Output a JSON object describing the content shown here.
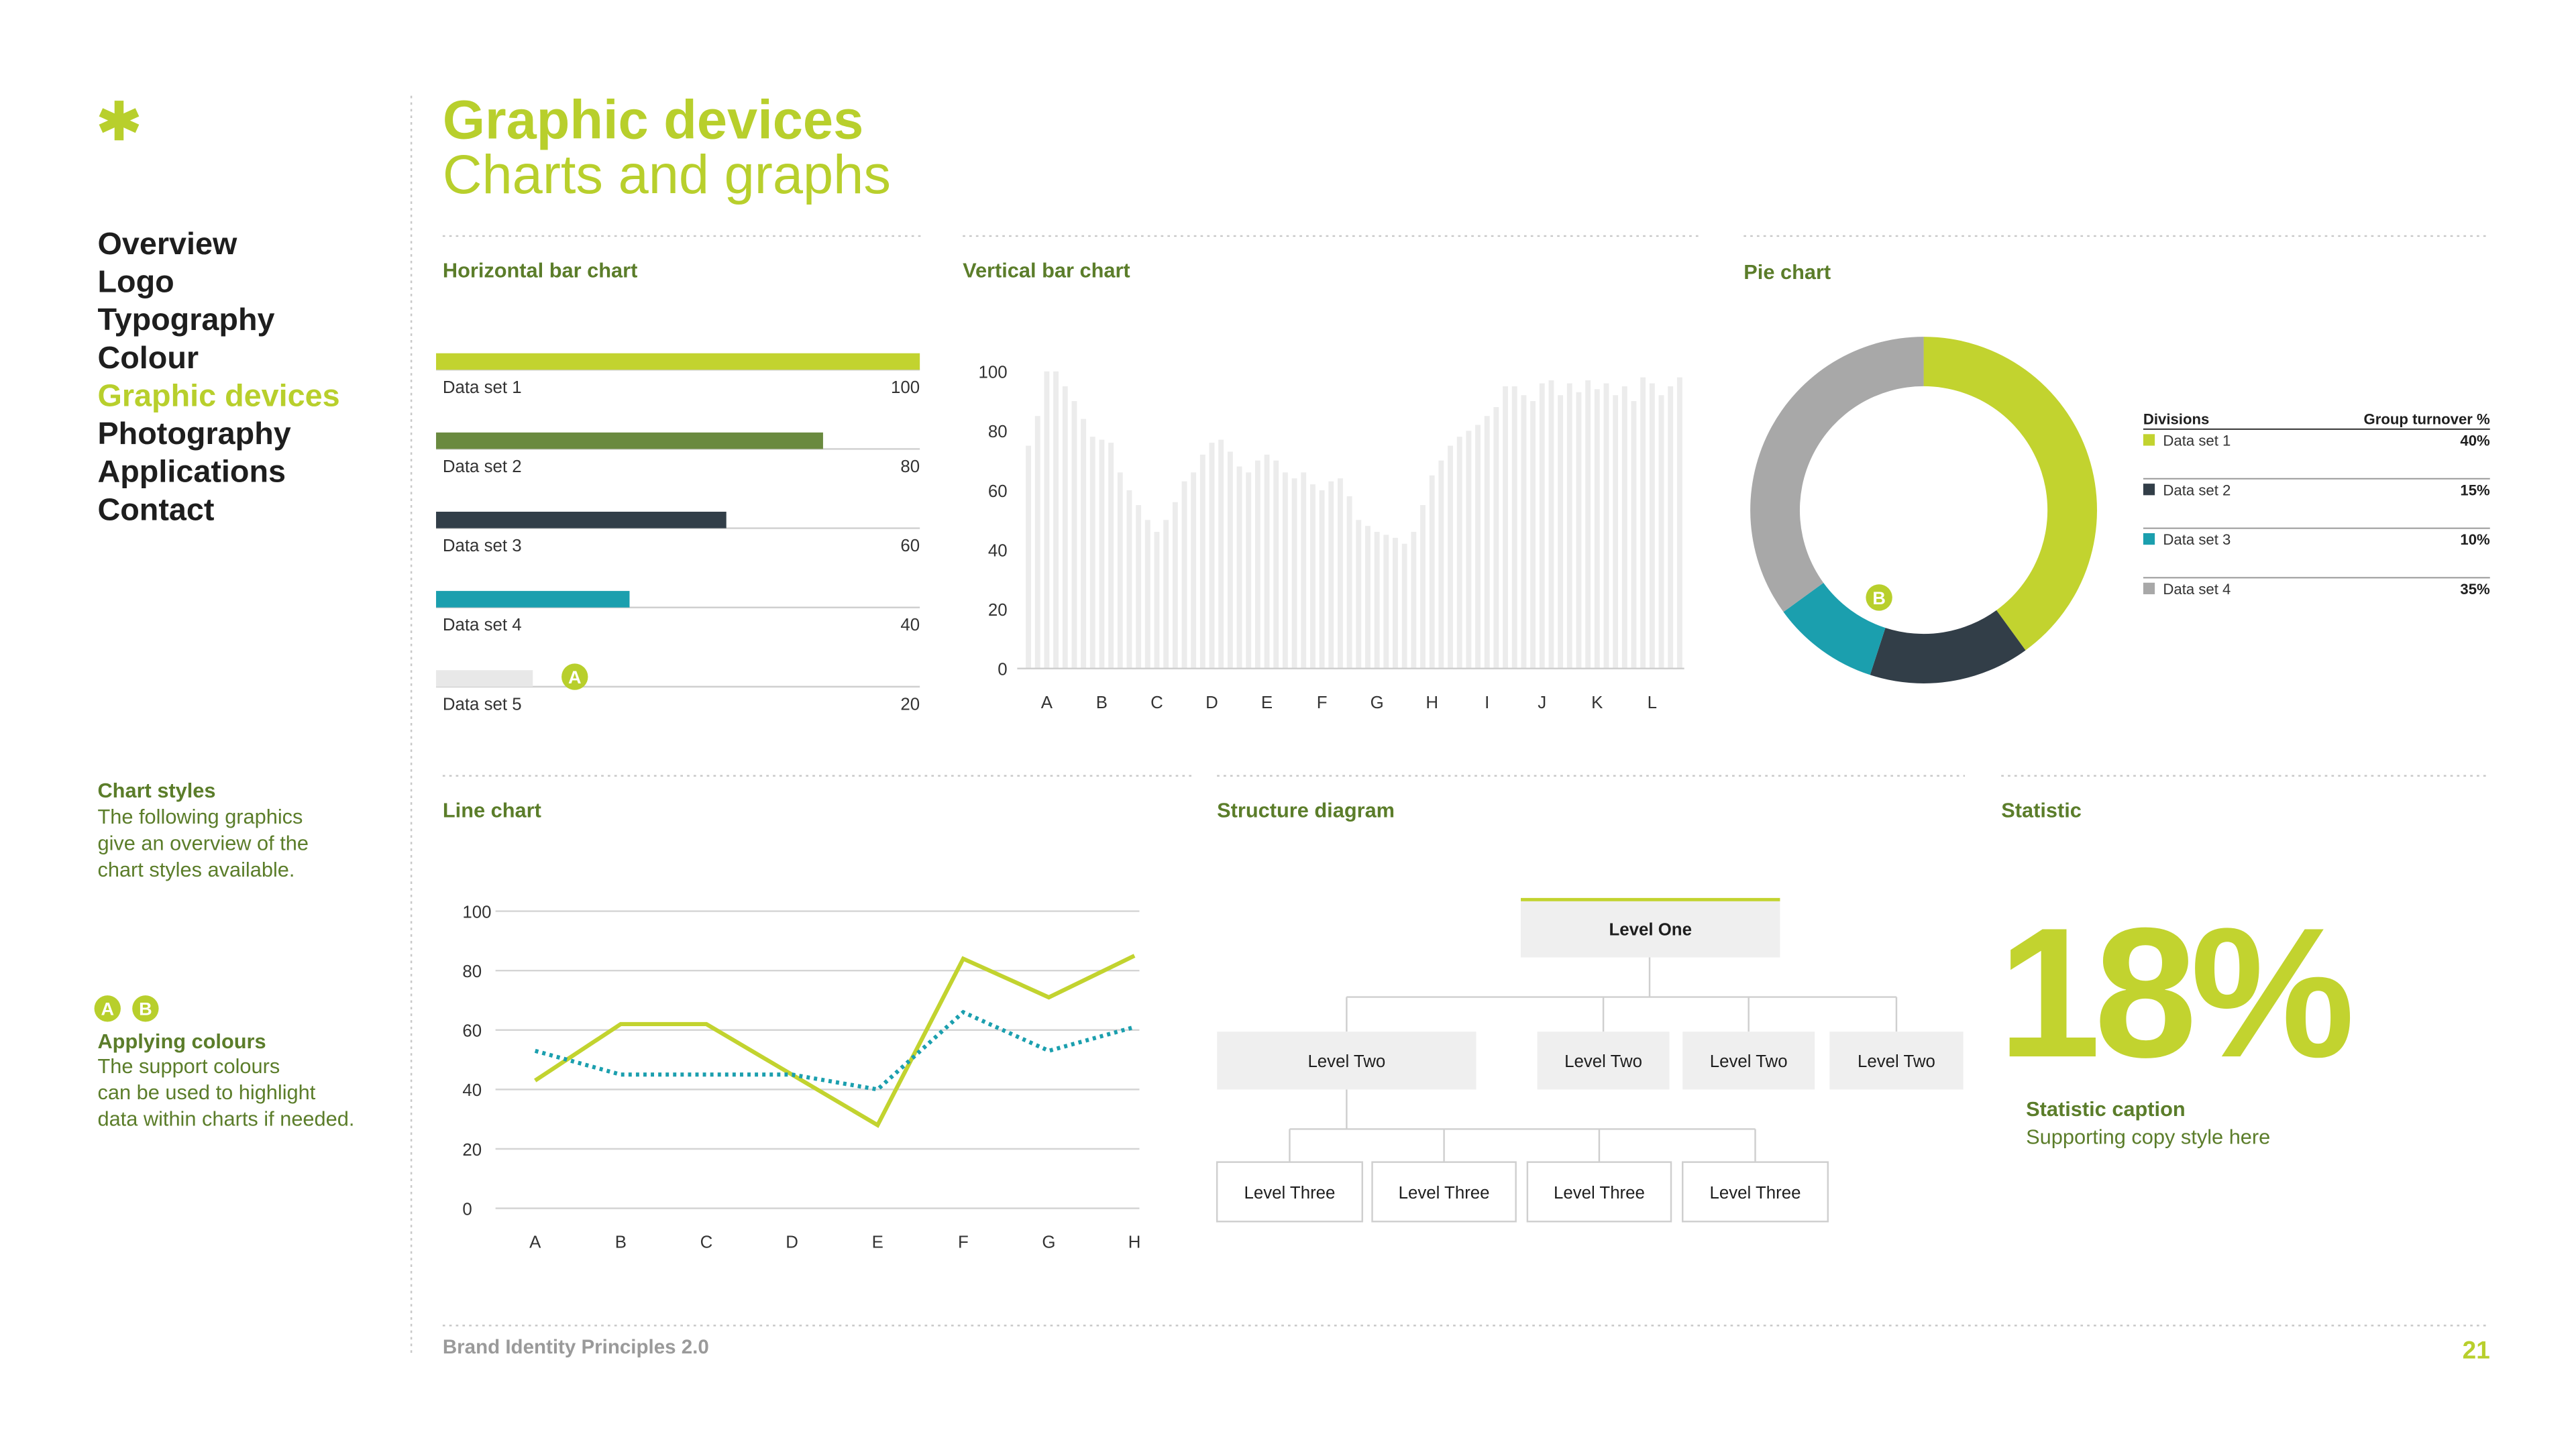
{
  "sidebar": {
    "nav": [
      {
        "label": "Overview"
      },
      {
        "label": "Logo"
      },
      {
        "label": "Typography"
      },
      {
        "label": "Colour"
      },
      {
        "label": "Graphic devices",
        "active": true
      },
      {
        "label": "Photography"
      },
      {
        "label": "Applications"
      },
      {
        "label": "Contact"
      }
    ],
    "chart_styles": {
      "heading": "Chart styles",
      "lines": [
        "The following graphics",
        "give an overview of the",
        "chart styles available."
      ]
    },
    "markers": [
      "A",
      "B"
    ],
    "applying": {
      "heading": "Applying colours",
      "lines": [
        "The support colours",
        "can be used to highlight",
        "data within charts if needed."
      ]
    }
  },
  "header": {
    "title": "Graphic devices",
    "subtitle": "Charts and graphs"
  },
  "horizontal_bar": {
    "type": "bar",
    "title": "Horizontal bar chart",
    "categories": [
      "Data set 1",
      "Data set 2",
      "Data set 3",
      "Data set 4",
      "Data set 5"
    ],
    "values": [
      100,
      80,
      60,
      40,
      20
    ],
    "colors": [
      "#c2d32f",
      "#6a8a3f",
      "#323e48",
      "#1b9fae",
      "#e8e8e8"
    ],
    "xlim": [
      0,
      100
    ],
    "marker": "A"
  },
  "vertical_bar": {
    "type": "bar",
    "title": "Vertical bar chart",
    "color": "#ececec",
    "categories": [
      null,
      null,
      "A",
      null,
      null,
      null,
      null,
      null,
      "B",
      null,
      null,
      null,
      null,
      null,
      "C",
      null,
      null,
      null,
      null,
      null,
      "D",
      null,
      null,
      null,
      null,
      null,
      "E",
      null,
      null,
      null,
      null,
      null,
      "F",
      null,
      null,
      null,
      null,
      null,
      "G",
      null,
      null,
      null,
      null,
      null,
      "H",
      null,
      null,
      null,
      null,
      null,
      "I",
      null,
      null,
      null,
      null,
      null,
      "J",
      null,
      null,
      null,
      null,
      null,
      "K",
      null,
      null,
      null,
      null,
      null,
      "L",
      null,
      null,
      null
    ],
    "values": [
      75,
      85,
      100,
      100,
      95,
      90,
      84,
      78,
      77,
      76,
      66,
      60,
      55,
      50,
      46,
      50,
      56,
      63,
      66,
      72,
      76,
      77,
      73,
      68,
      66,
      70,
      72,
      70,
      66,
      64,
      66,
      62,
      60,
      63,
      64,
      58,
      50,
      48,
      46,
      45,
      44,
      42,
      46,
      55,
      65,
      70,
      75,
      78,
      80,
      82,
      85,
      88,
      95,
      95,
      92,
      90,
      96,
      97,
      92,
      96,
      93,
      97,
      94,
      96,
      92,
      95,
      90,
      98,
      96,
      92,
      95,
      98
    ],
    "ylim": [
      0,
      100
    ],
    "yticks": [
      0,
      20,
      40,
      60,
      80,
      100
    ]
  },
  "pie": {
    "type": "pie",
    "title": "Pie chart",
    "legend_headers": [
      "Divisions",
      "Group turnover %"
    ],
    "categories": [
      "Data set 1",
      "Data set 2",
      "Data set 3",
      "Data set 4"
    ],
    "values": [
      40,
      15,
      10,
      35
    ],
    "value_labels": [
      "40%",
      "15%",
      "10%",
      "35%"
    ],
    "colors": [
      "#c2d32f",
      "#323e48",
      "#1b9fae",
      "#a8a8a8"
    ],
    "marker": "B"
  },
  "line": {
    "type": "line",
    "title": "Line chart",
    "categories": [
      "A",
      "B",
      "C",
      "D",
      "E",
      "F",
      "G",
      "H"
    ],
    "series": [
      {
        "color": "#c2d32f",
        "dashed": false,
        "values": [
          43,
          62,
          62,
          45,
          28,
          84,
          71,
          85
        ]
      },
      {
        "color": "#1b9fae",
        "dashed": true,
        "values": [
          53,
          45,
          45,
          45,
          40,
          66,
          53,
          61
        ]
      }
    ],
    "ylim": [
      0,
      100
    ],
    "yticks": [
      0,
      20,
      40,
      60,
      80,
      100
    ],
    "grid": true
  },
  "structure": {
    "title": "Structure diagram",
    "level_one": "Level One",
    "level_two": [
      "Level Two",
      "Level Two",
      "Level Two",
      "Level Two"
    ],
    "level_three": [
      "Level Three",
      "Level Three",
      "Level Three",
      "Level Three"
    ]
  },
  "statistic": {
    "title": "Statistic",
    "figure": "18%",
    "caption": "Statistic caption",
    "copy": "Supporting copy style here"
  },
  "footer": {
    "text": "Brand Identity Principles 2.0",
    "page": "21"
  }
}
